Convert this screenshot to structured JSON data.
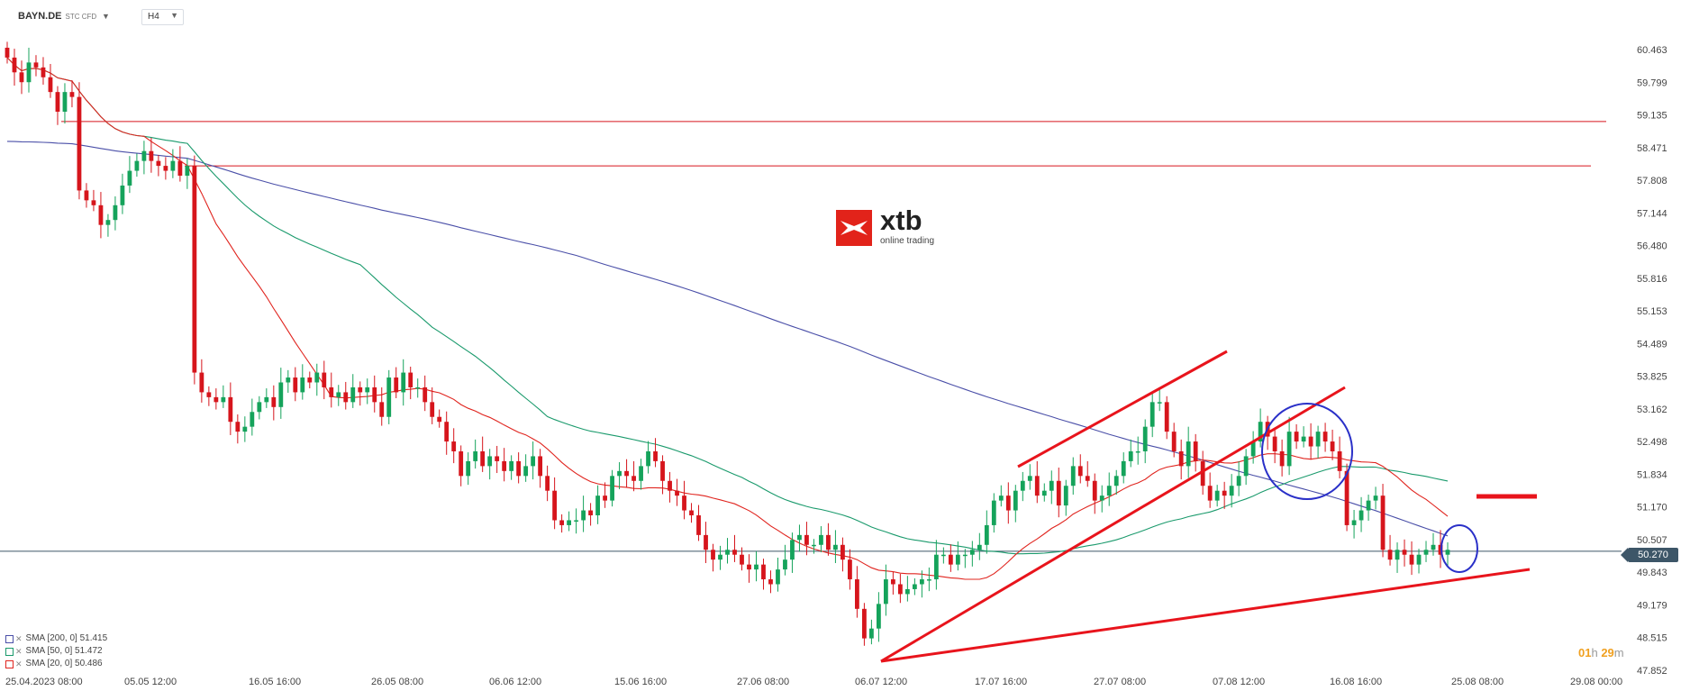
{
  "instrument": {
    "symbol": "BAYN.DE",
    "subtitle": "STC CFD",
    "timeframe": "H4"
  },
  "logo": {
    "word": "xtb",
    "tagline": "online trading"
  },
  "current_price": "50.270",
  "timer": {
    "hours": "01",
    "h_unit": "h",
    "minutes": "29",
    "m_unit": "m"
  },
  "legend": [
    {
      "label": "SMA [200, 0] 51.415",
      "color": "#4a4fa8"
    },
    {
      "label": "SMA [50, 0] 51.472",
      "color": "#1a9a6c"
    },
    {
      "label": "SMA [20, 0] 50.486",
      "color": "#e0241e"
    }
  ],
  "colors": {
    "bull": "#15a35b",
    "bear": "#d6151c",
    "sma200": "#4a4fa8",
    "sma50": "#1a9a6c",
    "sma20": "#e0241e",
    "trendline": "#e8141c",
    "circle": "#2a30c8",
    "price_line": "#3d5668",
    "grid": "#f0f0f0"
  },
  "chart_data": {
    "type": "candlestick",
    "y_ticks": [
      "60.463",
      "59.799",
      "59.135",
      "58.471",
      "57.808",
      "57.144",
      "56.480",
      "55.816",
      "55.153",
      "54.489",
      "53.825",
      "53.162",
      "52.498",
      "51.834",
      "51.170",
      "50.507",
      "49.843",
      "49.179",
      "48.515",
      "47.852"
    ],
    "ylim": [
      47.852,
      60.463
    ],
    "x_ticks": [
      "25.04.2023  08:00",
      "05.05  12:00",
      "16.05  16:00",
      "26.05  08:00",
      "06.06  12:00",
      "15.06  16:00",
      "27.06  08:00",
      "06.07  12:00",
      "17.07  16:00",
      "27.07  08:00",
      "07.08  12:00",
      "16.08  16:00",
      "25.08  08:00",
      "29.08  00:00"
    ],
    "closes": [
      60.3,
      60.0,
      59.8,
      60.2,
      60.1,
      59.9,
      59.6,
      59.2,
      59.6,
      59.5,
      57.6,
      57.4,
      57.3,
      56.9,
      57.0,
      57.3,
      57.7,
      58.0,
      58.2,
      58.4,
      58.2,
      58.1,
      58.0,
      58.2,
      57.9,
      58.1,
      53.9,
      53.5,
      53.4,
      53.3,
      53.4,
      52.9,
      52.7,
      52.8,
      53.1,
      53.3,
      53.4,
      53.2,
      53.7,
      53.8,
      53.5,
      53.8,
      53.7,
      53.9,
      53.6,
      53.4,
      53.5,
      53.3,
      53.6,
      53.5,
      53.6,
      53.3,
      53.0,
      53.8,
      53.5,
      53.9,
      53.6,
      53.6,
      53.3,
      53.0,
      52.9,
      52.5,
      52.3,
      51.8,
      52.1,
      52.3,
      52.0,
      52.2,
      52.1,
      51.9,
      52.1,
      51.8,
      52.0,
      52.2,
      51.8,
      51.5,
      50.9,
      50.8,
      50.9,
      50.9,
      51.1,
      51.0,
      51.4,
      51.3,
      51.8,
      51.9,
      51.8,
      51.7,
      52.0,
      52.3,
      52.1,
      51.7,
      51.5,
      51.4,
      51.1,
      51.0,
      50.6,
      50.3,
      50.1,
      50.2,
      50.3,
      50.2,
      50.0,
      49.9,
      50.0,
      49.7,
      49.6,
      49.9,
      50.1,
      50.5,
      50.6,
      50.4,
      50.4,
      50.6,
      50.3,
      50.4,
      50.1,
      49.7,
      49.1,
      48.5,
      48.7,
      49.2,
      49.7,
      49.6,
      49.4,
      49.5,
      49.6,
      49.7,
      49.7,
      50.2,
      50.2,
      50.0,
      50.2,
      50.2,
      50.3,
      50.4,
      50.8,
      51.3,
      51.4,
      51.1,
      51.5,
      51.7,
      51.8,
      51.4,
      51.5,
      51.7,
      51.2,
      51.6,
      52.0,
      51.8,
      51.7,
      51.3,
      51.4,
      51.6,
      51.8,
      52.1,
      52.3,
      52.3,
      52.8,
      53.3,
      53.3,
      52.7,
      52.3,
      52.0,
      52.5,
      52.1,
      51.6,
      51.3,
      51.5,
      51.4,
      51.6,
      51.8,
      52.2,
      52.5,
      52.9,
      52.6,
      52.3,
      52.0,
      52.7,
      52.5,
      52.6,
      52.4,
      52.7,
      52.5,
      52.3,
      51.9,
      50.8,
      50.9,
      51.1,
      51.3,
      51.4,
      50.3,
      50.1,
      50.3,
      50.2,
      50.0,
      50.2,
      50.3,
      50.4,
      50.2,
      50.3
    ],
    "x_first_candle_date": "25.04.2023",
    "sma200_last": 51.415,
    "sma50_last": 51.472,
    "sma20_last": 50.486,
    "horizontal_lines": [
      59.0,
      58.1
    ],
    "current_price": 50.27,
    "annotations": [
      "rising channel",
      "support trendline",
      "resistance level ~51.4",
      "circled zones near 52.2 and 50.2"
    ]
  }
}
